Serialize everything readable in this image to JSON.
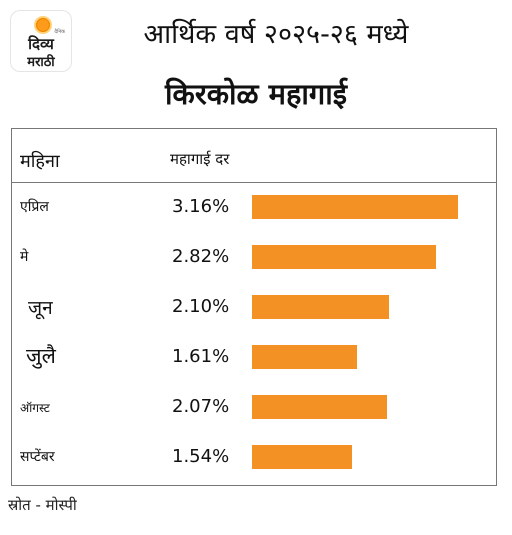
{
  "logo": {
    "line1": "दिव्य",
    "line2": "मराठी",
    "tag": "दैनिक"
  },
  "title": {
    "line1": "आर्थिक वर्ष २०२५-२६ मध्ये",
    "line2": "किरकोळ महागाई"
  },
  "table": {
    "col_month": "महिना",
    "col_rate": "महागाई दर"
  },
  "chart_data": {
    "type": "bar",
    "orientation": "horizontal",
    "categories": [
      "एप्रिल",
      "मे",
      "जून",
      "जुलै",
      "ऑगस्ट",
      "सप्टेंबर"
    ],
    "values": [
      3.16,
      2.82,
      2.1,
      1.61,
      2.07,
      1.54
    ],
    "value_labels": [
      "3.16%",
      "2.82%",
      "2.10%",
      "1.61%",
      "2.07%",
      "1.54%"
    ],
    "unit": "%",
    "bar_color": "#f49125",
    "xlim": [
      0,
      3.16
    ]
  },
  "source": "स्रोत - मोस्पी"
}
